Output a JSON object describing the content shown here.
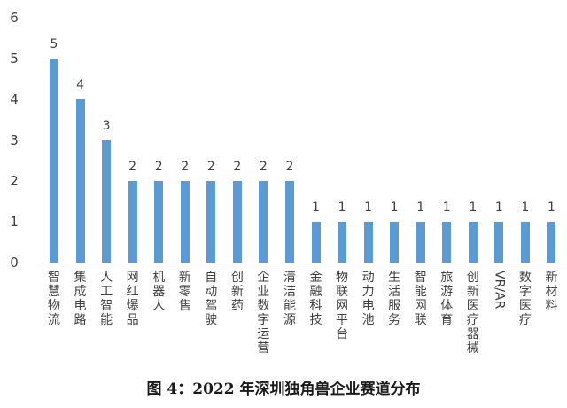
{
  "chart_data": {
    "type": "bar",
    "title": "图 4：2022 年深圳独角兽企业赛道分布",
    "xlabel": "",
    "ylabel": "",
    "ylim": [
      0,
      6
    ],
    "yticks": [
      0,
      1,
      2,
      3,
      4,
      5,
      6
    ],
    "grid": false,
    "legend": null,
    "data_labels": true,
    "bar_color": "#5b9bd5",
    "categories": [
      "智慧物流",
      "集成电路",
      "人工智能",
      "网红爆品",
      "机器人",
      "新零售",
      "自动驾驶",
      "创新药",
      "企业数字运营",
      "清洁能源",
      "金融科技",
      "物联网平台",
      "动力电池",
      "生活服务",
      "智能网联",
      "旅游体育",
      "创新医疗器械",
      "VR/AR",
      "数字医疗",
      "新材料"
    ],
    "values": [
      5,
      4,
      3,
      2,
      2,
      2,
      2,
      2,
      2,
      2,
      1,
      1,
      1,
      1,
      1,
      1,
      1,
      1,
      1,
      1
    ]
  },
  "caption": "图 4：2022 年深圳独角兽企业赛道分布"
}
